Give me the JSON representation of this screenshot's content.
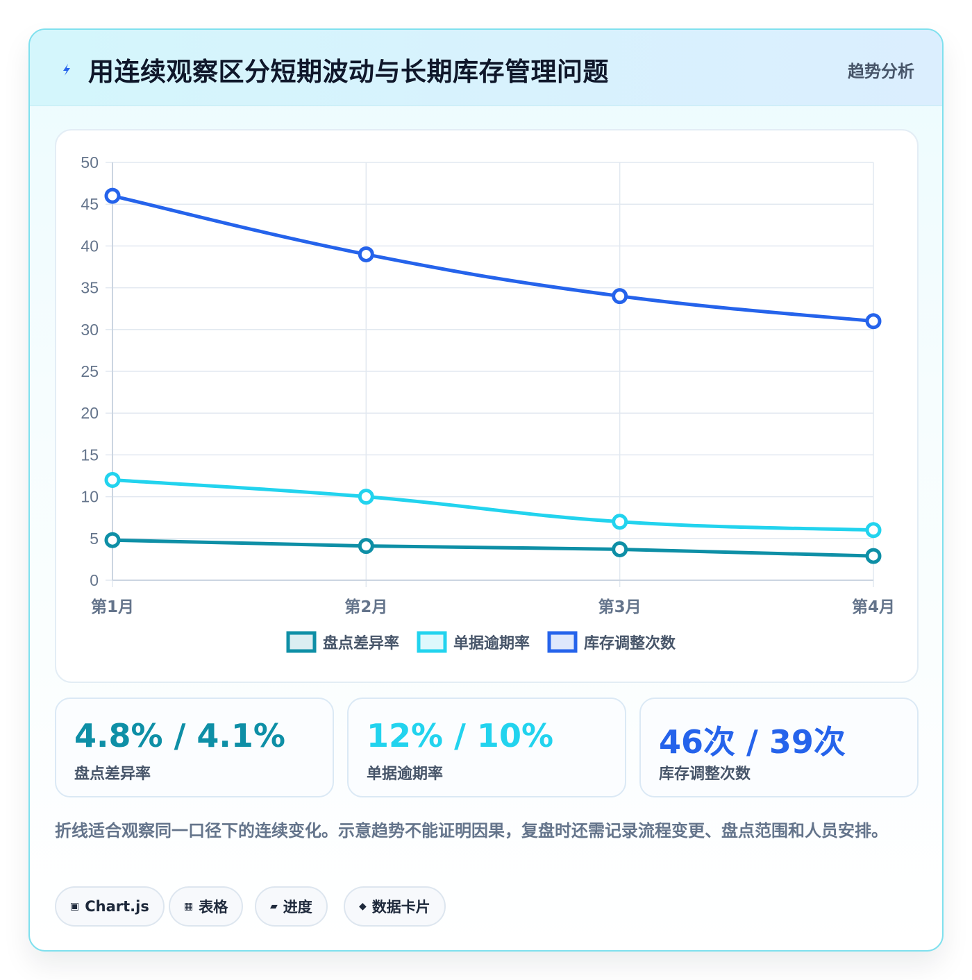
{
  "header": {
    "title": "用连续观察区分短期波动与长期库存管理问题",
    "tag": "趋势分析",
    "icon": "lightning-bolt-icon"
  },
  "chart_data": {
    "type": "line",
    "categories": [
      "第1月",
      "第2月",
      "第3月",
      "第4月"
    ],
    "ylim": [
      0,
      50
    ],
    "yticks": [
      0,
      5,
      10,
      15,
      20,
      25,
      30,
      35,
      40,
      45,
      50
    ],
    "grid": true,
    "legend_position": "bottom",
    "series": [
      {
        "name": "盘点差异率",
        "values": [
          4.8,
          4.1,
          3.7,
          2.9
        ],
        "color": "#0e8fa6"
      },
      {
        "name": "单据逾期率",
        "values": [
          12,
          10,
          7,
          6
        ],
        "color": "#22d3ee"
      },
      {
        "name": "库存调整次数",
        "values": [
          46,
          39,
          34,
          31
        ],
        "color": "#2563eb"
      }
    ]
  },
  "stats": [
    {
      "value": "4.8% / 4.1%",
      "label": "盘点差异率",
      "color": "#0e8fa6"
    },
    {
      "value": "12% / 10%",
      "label": "单据逾期率",
      "color": "#22d3ee"
    },
    {
      "value": "46次 / 39次",
      "label": "库存调整次数",
      "color": "#2563eb"
    }
  ],
  "note": "折线适合观察同一口径下的连续变化。示意趋势不能证明因果，复盘时还需记录流程变更、盘点范围和人员安排。",
  "pills": [
    {
      "icon": "▣",
      "label": "Chart.js"
    },
    {
      "icon": "▦",
      "label": "表格"
    },
    {
      "icon": "▰",
      "label": "进度"
    },
    {
      "icon": "◆",
      "label": "数据卡片"
    }
  ]
}
